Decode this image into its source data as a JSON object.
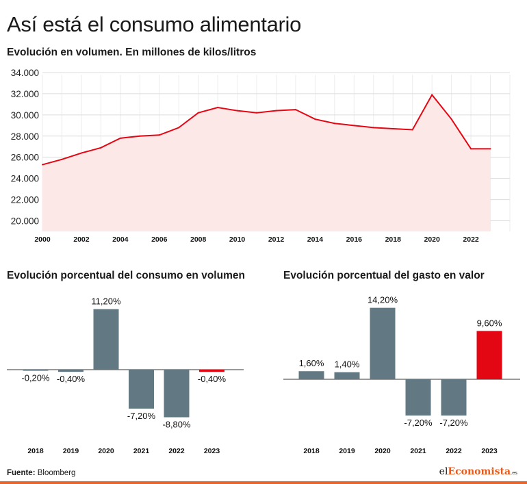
{
  "title": "Así está el consumo alimentario",
  "source": {
    "label": "Fuente:",
    "text": "Bloomberg"
  },
  "logo": {
    "pre": "el",
    "brand": "Economista",
    "suffix": ".es"
  },
  "colors": {
    "red": "#e30613",
    "gray": "#627882",
    "area": "#fde8e8",
    "grid": "#dcdcdc"
  },
  "chart_data": [
    {
      "type": "area",
      "title": "Evolución en volumen. En millones de kilos/litros",
      "x": [
        2000,
        2001,
        2002,
        2003,
        2004,
        2005,
        2006,
        2007,
        2008,
        2009,
        2010,
        2011,
        2012,
        2013,
        2014,
        2015,
        2016,
        2017,
        2018,
        2019,
        2020,
        2021,
        2022,
        2023
      ],
      "y": [
        25300,
        25800,
        26400,
        26900,
        27800,
        28000,
        28100,
        28800,
        30200,
        30700,
        30400,
        30200,
        30400,
        30500,
        29600,
        29200,
        29000,
        28800,
        28700,
        28600,
        31900,
        29600,
        26800,
        26800
      ],
      "x_ticks": [
        "2000",
        "2002",
        "2004",
        "2006",
        "2008",
        "2010",
        "2012",
        "2014",
        "2016",
        "2018",
        "2020",
        "2022"
      ],
      "y_ticks": [
        "34.000",
        "32.000",
        "30.000",
        "28.000",
        "26.000",
        "24.000",
        "22.000",
        "20.000"
      ],
      "ylim": [
        19000,
        34000
      ],
      "grid": true
    },
    {
      "type": "bar",
      "title": "Evolución porcentual del consumo en volumen",
      "categories": [
        "2018",
        "2019",
        "2020",
        "2021",
        "2022",
        "2023"
      ],
      "values": [
        -0.2,
        -0.4,
        11.2,
        -7.2,
        -8.8,
        -0.4
      ],
      "labels": [
        "-0,20%",
        "-0,40%",
        "11,20%",
        "-7,20%",
        "-8,80%",
        "-0,40%"
      ],
      "highlight": "2023"
    },
    {
      "type": "bar",
      "title": "Evolución porcentual del gasto en valor",
      "categories": [
        "2018",
        "2019",
        "2020",
        "2021",
        "2022",
        "2023"
      ],
      "values": [
        1.6,
        1.4,
        14.2,
        -7.2,
        -7.2,
        9.6
      ],
      "labels": [
        "1,60%",
        "1,40%",
        "14,20%",
        "-7,20%",
        "-7,20%",
        "9,60%"
      ],
      "highlight": "2023"
    }
  ]
}
